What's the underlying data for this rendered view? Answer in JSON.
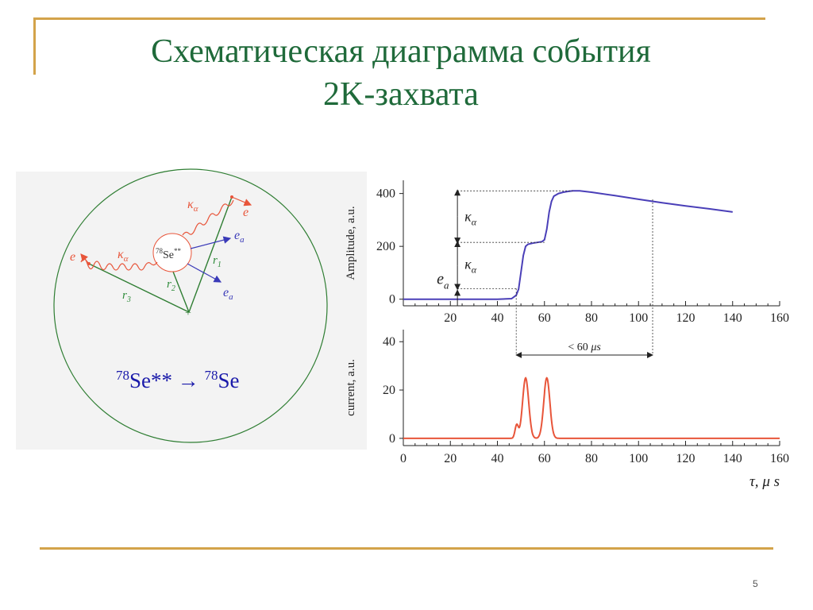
{
  "slide": {
    "title_line1": "Схематическая диаграмма события",
    "title_line2": "2K-захвата",
    "page_number": "5"
  },
  "colors": {
    "title": "#1f6a3a",
    "frame": "#d3a34a",
    "amplitude_line": "#4a3fb8",
    "current_line": "#e8553a",
    "circle": "#2e7d32",
    "red_label": "#e8553a",
    "blue_label": "#3a3ab8",
    "green_label": "#2e8b3a"
  },
  "diagram": {
    "nucleus_mass": "78",
    "nucleus_label": "Se",
    "nucleus_excited": "**",
    "kappa_top": "κ",
    "kappa_left": "κ",
    "alpha": "α",
    "electron_top": "e",
    "electron_left": "e",
    "ea_top": "e",
    "ea_bottom": "e",
    "a_sub": "a",
    "r1": "r",
    "r1_sub": "1",
    "r2": "r",
    "r2_sub": "2",
    "r3": "r",
    "r3_sub": "3",
    "reaction_mass_left": "78",
    "reaction_left": "Se** → ",
    "reaction_mass_right": "78",
    "reaction_right": "Se"
  },
  "chart_data": [
    {
      "type": "line",
      "ylabel": "Amplitude, a.u.",
      "xlim": [
        0,
        160
      ],
      "ylim": [
        -25,
        450
      ],
      "x_ticks": [
        20,
        40,
        60,
        80,
        100,
        120,
        140,
        160
      ],
      "y_ticks": [
        0,
        200,
        400
      ],
      "series": [
        {
          "x": [
            0,
            20,
            40,
            46,
            48,
            49,
            50,
            51,
            52,
            53,
            55,
            57,
            59,
            60,
            61,
            62,
            63,
            64,
            66,
            68,
            70,
            72,
            75,
            80,
            90,
            100,
            110,
            120,
            130,
            140
          ],
          "values": [
            0,
            0,
            0,
            2,
            15,
            38,
            100,
            165,
            200,
            208,
            212,
            215,
            218,
            225,
            265,
            330,
            370,
            390,
            400,
            405,
            408,
            410,
            410,
            405,
            392,
            378,
            365,
            353,
            342,
            330
          ]
        }
      ],
      "annotations": {
        "ea": "e",
        "ea_sub": "a",
        "kappa": "κ",
        "alpha": "α",
        "interval": "< 60 ",
        "interval_unit": "μs"
      }
    },
    {
      "type": "line",
      "ylabel": "current, a.u.",
      "xlabel": "τ,",
      "xlabel_unit": "μ s",
      "xlim": [
        0,
        160
      ],
      "ylim": [
        -3,
        45
      ],
      "x_ticks": [
        0,
        20,
        40,
        60,
        80,
        100,
        120,
        140,
        160
      ],
      "y_ticks": [
        0,
        20,
        40
      ],
      "series": [
        {
          "peaks": [
            {
              "center": 48.2,
              "amplitude": 5.5,
              "width": 0.7
            },
            {
              "center": 52,
              "amplitude": 25,
              "width": 1.3
            },
            {
              "center": 61,
              "amplitude": 25,
              "width": 1.3
            }
          ],
          "values_note_points": [
            [
              0,
              0
            ],
            [
              46,
              0
            ],
            [
              48.2,
              5.5
            ],
            [
              52,
              25
            ],
            [
              56.5,
              0
            ],
            [
              61,
              25
            ],
            [
              65,
              0
            ],
            [
              160,
              0
            ]
          ]
        }
      ]
    }
  ]
}
